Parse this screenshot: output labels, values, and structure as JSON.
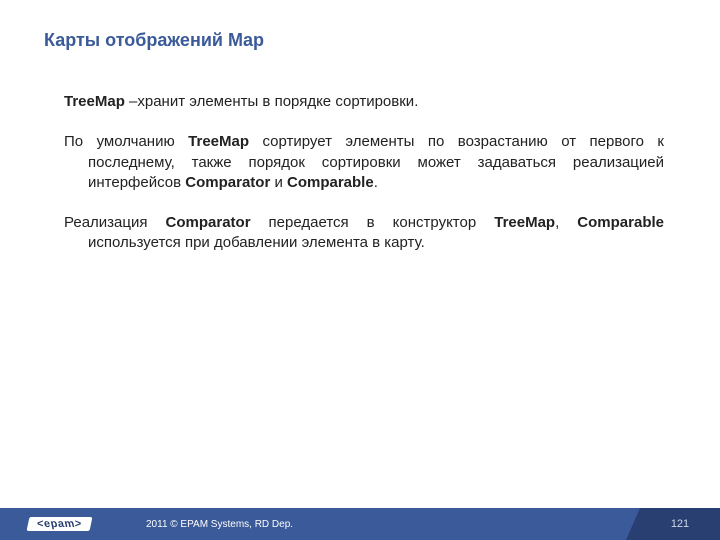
{
  "title": {
    "text": "Карты отображений Map",
    "color": "#3a5a99",
    "fontsize": 18
  },
  "content": {
    "color": "#222222",
    "fontsize": 15,
    "paragraphs": [
      {
        "justify": false,
        "segments": [
          {
            "text": "TreeMap",
            "bold": true
          },
          {
            "text": " –хранит элементы в порядке сортировки.",
            "bold": false
          }
        ]
      },
      {
        "justify": true,
        "segments": [
          {
            "text": "По умолчанию ",
            "bold": false
          },
          {
            "text": "TreeMap",
            "bold": true
          },
          {
            "text": " сортирует элементы по возрастанию от первого к последнему, также порядок сортировки может задаваться реализацией интерфейсов ",
            "bold": false
          },
          {
            "text": "Comparator",
            "bold": true
          },
          {
            "text": " и ",
            "bold": false
          },
          {
            "text": "Comparable",
            "bold": true
          },
          {
            "text": ".",
            "bold": false
          }
        ]
      },
      {
        "justify": true,
        "segments": [
          {
            "text": "Реализация ",
            "bold": false
          },
          {
            "text": "Comparator",
            "bold": true
          },
          {
            "text": " передается в конструктор ",
            "bold": false
          },
          {
            "text": "TreeMap",
            "bold": true
          },
          {
            "text": ", ",
            "bold": false
          },
          {
            "text": "Comparable",
            "bold": true
          },
          {
            "text": " используется при добавлении элемента в карту.",
            "bold": false
          }
        ]
      }
    ]
  },
  "footer": {
    "logo": "epam",
    "copyright": "2011 © EPAM Systems, RD Dep.",
    "page": "121",
    "bar_color": "#3a5a99",
    "page_block_color": "#2a3f71"
  }
}
